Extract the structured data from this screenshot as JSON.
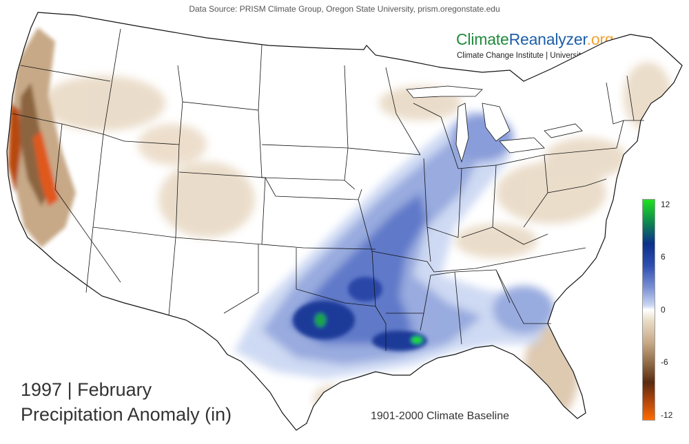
{
  "header": {
    "data_source": "Data Source: PRISM Climate Group, Oregon State University, prism.oregonstate.edu",
    "brand_climate": "Climate",
    "brand_reanalyzer": "Reanalyzer",
    "brand_org": ".org",
    "institute": "Climate Change Institute | University of Maine"
  },
  "title": {
    "line1": "1997 | February",
    "line2": "Precipitation Anomaly (in)"
  },
  "baseline": "1901-2000 Climate Baseline",
  "legend": {
    "ticks": [
      "12",
      "6",
      "0",
      "-6",
      "-12"
    ]
  },
  "colors": {
    "wet_extreme": "#21e021",
    "wet_high": "#0c2f8a",
    "wet_mid": "#4f6cc4",
    "wet_low": "#c9d6f2",
    "neutral": "#ffffff",
    "dry_low": "#e7d7c1",
    "dry_mid": "#8c6541",
    "dry_extreme": "#ff6a00"
  }
}
